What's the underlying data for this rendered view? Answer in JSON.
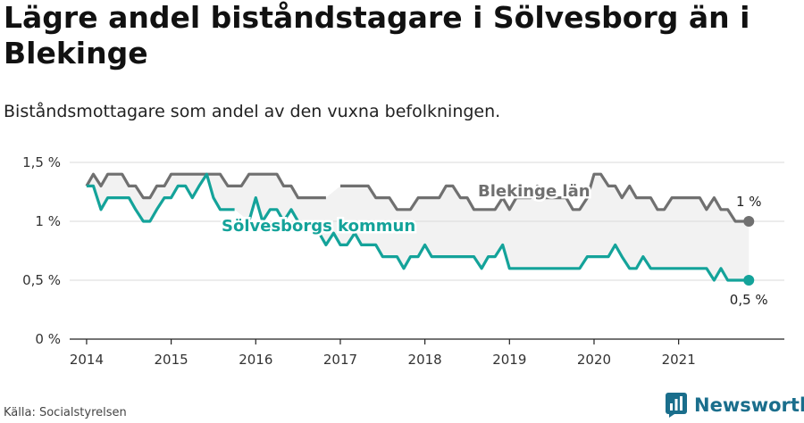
{
  "title": "Lägre andel biståndstagare i Sölvesborg än i Blekinge",
  "subtitle": "Biståndsmottagare som andel av den vuxna befolkningen.",
  "source": "Källa: Socialstyrelsen",
  "logo_text": "Newsworthy",
  "colors": {
    "solvesborg": "#14a39a",
    "blekinge": "#707070",
    "grid": "#d9d9d9",
    "band": "#f2f2f2",
    "logo": "#1a6e8c"
  },
  "chart_data": {
    "type": "line",
    "x_unit": "year",
    "ylim": [
      0,
      1.5
    ],
    "xlim": [
      2013.8,
      2022.25
    ],
    "y_ticks": [
      {
        "value": 0,
        "label": "0 %"
      },
      {
        "value": 0.5,
        "label": "0,5 %"
      },
      {
        "value": 1,
        "label": "1 %"
      },
      {
        "value": 1.5,
        "label": "1,5 %"
      }
    ],
    "x_ticks": [
      {
        "value": 2014,
        "label": "2014"
      },
      {
        "value": 2015,
        "label": "2015"
      },
      {
        "value": 2016,
        "label": "2016"
      },
      {
        "value": 2017,
        "label": "2017"
      },
      {
        "value": 2018,
        "label": "2018"
      },
      {
        "value": 2019,
        "label": "2019"
      },
      {
        "value": 2020,
        "label": "2020"
      },
      {
        "value": 2021,
        "label": "2021"
      }
    ],
    "series": [
      {
        "name": "Blekinge län",
        "key": "blekinge",
        "end_label": "1 %",
        "points": [
          [
            2014.0,
            1.3
          ],
          [
            2014.08,
            1.4
          ],
          [
            2014.17,
            1.3
          ],
          [
            2014.25,
            1.4
          ],
          [
            2014.33,
            1.4
          ],
          [
            2014.42,
            1.4
          ],
          [
            2014.5,
            1.3
          ],
          [
            2014.58,
            1.3
          ],
          [
            2014.67,
            1.2
          ],
          [
            2014.75,
            1.2
          ],
          [
            2014.83,
            1.3
          ],
          [
            2014.92,
            1.3
          ],
          [
            2015.0,
            1.4
          ],
          [
            2015.08,
            1.4
          ],
          [
            2015.17,
            1.4
          ],
          [
            2015.25,
            1.4
          ],
          [
            2015.33,
            1.4
          ],
          [
            2015.42,
            1.4
          ],
          [
            2015.5,
            1.4
          ],
          [
            2015.58,
            1.4
          ],
          [
            2015.67,
            1.3
          ],
          [
            2015.75,
            1.3
          ],
          [
            2015.83,
            1.3
          ],
          [
            2015.92,
            1.4
          ],
          [
            2016.0,
            1.4
          ],
          [
            2016.08,
            1.4
          ],
          [
            2016.17,
            1.4
          ],
          [
            2016.25,
            1.4
          ],
          [
            2016.33,
            1.3
          ],
          [
            2016.42,
            1.3
          ],
          [
            2016.5,
            1.2
          ],
          [
            2016.58,
            1.2
          ],
          [
            2016.67,
            1.2
          ],
          [
            2016.75,
            1.2
          ],
          [
            2016.83,
            1.2
          ],
          null,
          [
            2017.0,
            1.3
          ],
          [
            2017.08,
            1.3
          ],
          [
            2017.17,
            1.3
          ],
          [
            2017.25,
            1.3
          ],
          [
            2017.33,
            1.3
          ],
          [
            2017.42,
            1.2
          ],
          [
            2017.5,
            1.2
          ],
          [
            2017.58,
            1.2
          ],
          [
            2017.67,
            1.1
          ],
          [
            2017.75,
            1.1
          ],
          [
            2017.83,
            1.1
          ],
          [
            2017.92,
            1.2
          ],
          [
            2018.0,
            1.2
          ],
          [
            2018.08,
            1.2
          ],
          [
            2018.17,
            1.2
          ],
          [
            2018.25,
            1.3
          ],
          [
            2018.33,
            1.3
          ],
          [
            2018.42,
            1.2
          ],
          [
            2018.5,
            1.2
          ],
          [
            2018.58,
            1.1
          ],
          [
            2018.67,
            1.1
          ],
          [
            2018.75,
            1.1
          ],
          [
            2018.83,
            1.1
          ],
          [
            2018.92,
            1.2
          ],
          [
            2019.0,
            1.1
          ],
          [
            2019.08,
            1.2
          ],
          [
            2019.17,
            1.2
          ],
          [
            2019.25,
            1.2
          ],
          [
            2019.33,
            1.3
          ],
          [
            2019.42,
            1.2
          ],
          [
            2019.5,
            1.2
          ],
          [
            2019.58,
            1.2
          ],
          [
            2019.67,
            1.2
          ],
          [
            2019.75,
            1.1
          ],
          [
            2019.83,
            1.1
          ],
          [
            2019.92,
            1.2
          ],
          [
            2020.0,
            1.4
          ],
          [
            2020.08,
            1.4
          ],
          [
            2020.17,
            1.3
          ],
          [
            2020.25,
            1.3
          ],
          [
            2020.33,
            1.2
          ],
          [
            2020.42,
            1.3
          ],
          [
            2020.5,
            1.2
          ],
          [
            2020.58,
            1.2
          ],
          [
            2020.67,
            1.2
          ],
          [
            2020.75,
            1.1
          ],
          [
            2020.83,
            1.1
          ],
          [
            2020.92,
            1.2
          ],
          [
            2021.0,
            1.2
          ],
          [
            2021.08,
            1.2
          ],
          [
            2021.17,
            1.2
          ],
          [
            2021.25,
            1.2
          ],
          [
            2021.33,
            1.1
          ],
          [
            2021.42,
            1.2
          ],
          [
            2021.5,
            1.1
          ],
          [
            2021.58,
            1.1
          ],
          [
            2021.67,
            1.0
          ],
          [
            2021.75,
            1.0
          ],
          [
            2021.83,
            1.0
          ]
        ]
      },
      {
        "name": "Sölvesborgs kommun",
        "key": "solvesborg",
        "end_label": "0,5 %",
        "points": [
          [
            2014.0,
            1.3
          ],
          [
            2014.08,
            1.3
          ],
          [
            2014.17,
            1.1
          ],
          [
            2014.25,
            1.2
          ],
          [
            2014.33,
            1.2
          ],
          [
            2014.42,
            1.2
          ],
          [
            2014.5,
            1.2
          ],
          [
            2014.58,
            1.1
          ],
          [
            2014.67,
            1.0
          ],
          [
            2014.75,
            1.0
          ],
          [
            2014.83,
            1.1
          ],
          [
            2014.92,
            1.2
          ],
          [
            2015.0,
            1.2
          ],
          [
            2015.08,
            1.3
          ],
          [
            2015.17,
            1.3
          ],
          [
            2015.25,
            1.2
          ],
          [
            2015.33,
            1.3
          ],
          [
            2015.42,
            1.4
          ],
          [
            2015.5,
            1.2
          ],
          [
            2015.58,
            1.1
          ],
          [
            2015.67,
            1.1
          ],
          [
            2015.75,
            1.1
          ],
          null,
          [
            2015.92,
            1.0
          ],
          [
            2016.0,
            1.2
          ],
          [
            2016.08,
            1.0
          ],
          [
            2016.17,
            1.1
          ],
          [
            2016.25,
            1.1
          ],
          [
            2016.33,
            1.0
          ],
          [
            2016.42,
            1.1
          ],
          [
            2016.5,
            1.0
          ],
          null,
          [
            2016.67,
            1.0
          ],
          [
            2016.75,
            0.9
          ],
          [
            2016.83,
            0.8
          ],
          [
            2016.92,
            0.9
          ],
          [
            2017.0,
            0.8
          ],
          [
            2017.08,
            0.8
          ],
          [
            2017.17,
            0.9
          ],
          [
            2017.25,
            0.8
          ],
          [
            2017.33,
            0.8
          ],
          [
            2017.42,
            0.8
          ],
          [
            2017.5,
            0.7
          ],
          [
            2017.58,
            0.7
          ],
          [
            2017.67,
            0.7
          ],
          [
            2017.75,
            0.6
          ],
          [
            2017.83,
            0.7
          ],
          [
            2017.92,
            0.7
          ],
          [
            2018.0,
            0.8
          ],
          [
            2018.08,
            0.7
          ],
          [
            2018.17,
            0.7
          ],
          [
            2018.25,
            0.7
          ],
          [
            2018.33,
            0.7
          ],
          [
            2018.42,
            0.7
          ],
          [
            2018.5,
            0.7
          ],
          [
            2018.58,
            0.7
          ],
          [
            2018.67,
            0.6
          ],
          [
            2018.75,
            0.7
          ],
          [
            2018.83,
            0.7
          ],
          [
            2018.92,
            0.8
          ],
          [
            2019.0,
            0.6
          ],
          [
            2019.08,
            0.6
          ],
          [
            2019.17,
            0.6
          ],
          [
            2019.25,
            0.6
          ],
          [
            2019.33,
            0.6
          ],
          [
            2019.42,
            0.6
          ],
          [
            2019.5,
            0.6
          ],
          [
            2019.58,
            0.6
          ],
          [
            2019.67,
            0.6
          ],
          [
            2019.75,
            0.6
          ],
          [
            2019.83,
            0.6
          ],
          [
            2019.92,
            0.7
          ],
          [
            2020.0,
            0.7
          ],
          [
            2020.08,
            0.7
          ],
          [
            2020.17,
            0.7
          ],
          [
            2020.25,
            0.8
          ],
          [
            2020.33,
            0.7
          ],
          [
            2020.42,
            0.6
          ],
          [
            2020.5,
            0.6
          ],
          [
            2020.58,
            0.7
          ],
          [
            2020.67,
            0.6
          ],
          [
            2020.75,
            0.6
          ],
          [
            2020.83,
            0.6
          ],
          [
            2020.92,
            0.6
          ],
          [
            2021.0,
            0.6
          ],
          [
            2021.08,
            0.6
          ],
          [
            2021.17,
            0.6
          ],
          [
            2021.25,
            0.6
          ],
          [
            2021.33,
            0.6
          ],
          [
            2021.42,
            0.5
          ],
          [
            2021.5,
            0.6
          ],
          [
            2021.58,
            0.5
          ],
          [
            2021.67,
            0.5
          ],
          [
            2021.75,
            0.5
          ],
          [
            2021.83,
            0.5
          ]
        ]
      }
    ],
    "grid": true,
    "legend": "inline labels"
  }
}
